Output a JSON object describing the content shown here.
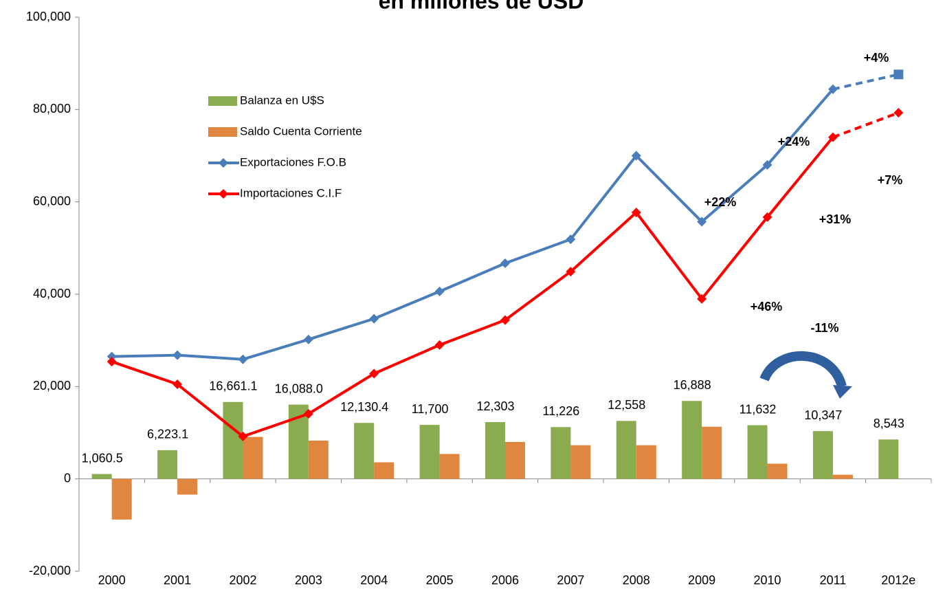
{
  "chart_data": {
    "type": "bar_line",
    "title": "en millones de USD",
    "categories": [
      "2000",
      "2001",
      "2002",
      "2003",
      "2004",
      "2005",
      "2006",
      "2007",
      "2008",
      "2009",
      "2010",
      "2011",
      "2012e"
    ],
    "series": [
      {
        "name": "Balanza en U$S",
        "kind": "bar",
        "color": "#8aac4e",
        "values": [
          1060.5,
          6223.1,
          16661.1,
          16088.0,
          12130.4,
          11700,
          12303,
          11226,
          12558,
          16888,
          11632,
          10347,
          8543
        ],
        "value_labels": [
          "1,060.5",
          "6,223.1",
          "16,661.1",
          "16,088.0",
          "12,130.4",
          "11,700",
          "12,303",
          "11,226",
          "12,558",
          "16,888",
          "11,632",
          "10,347",
          "8,543"
        ]
      },
      {
        "name": "Saldo Cuenta Corriente",
        "kind": "bar",
        "color": "#e0863f",
        "values": [
          -8800,
          -3400,
          9100,
          8300,
          3600,
          5400,
          8000,
          7300,
          7300,
          11300,
          3300,
          900,
          null
        ]
      },
      {
        "name": "Exportaciones F.O.B",
        "kind": "line",
        "color": "#4a7ebb",
        "values": [
          26500,
          26800,
          25900,
          30200,
          34700,
          40600,
          46700,
          51900,
          70000,
          55700,
          68000,
          84400,
          87600
        ]
      },
      {
        "name": "Importaciones C.I.F",
        "kind": "line",
        "color": "#ff0000",
        "values": [
          25400,
          20500,
          9200,
          14100,
          22800,
          29000,
          34400,
          44900,
          57700,
          39000,
          56700,
          74000,
          79300
        ]
      }
    ],
    "annotations": [
      "+4%",
      "+24%",
      "+7%",
      "+22%",
      "+31%",
      "+46%",
      "-11%"
    ],
    "ylim": [
      -20000,
      100000
    ],
    "yticks": [
      {
        "value": -20000,
        "label": "-20,000"
      },
      0,
      {
        "value": 20000,
        "label": "20,000"
      },
      {
        "value": 40000,
        "label": "40,000"
      },
      {
        "value": 60000,
        "label": "60,000"
      },
      {
        "value": 80000,
        "label": "80,000"
      },
      {
        "value": 100000,
        "label": "100,000"
      }
    ],
    "legend": "upper left",
    "grid": false
  }
}
